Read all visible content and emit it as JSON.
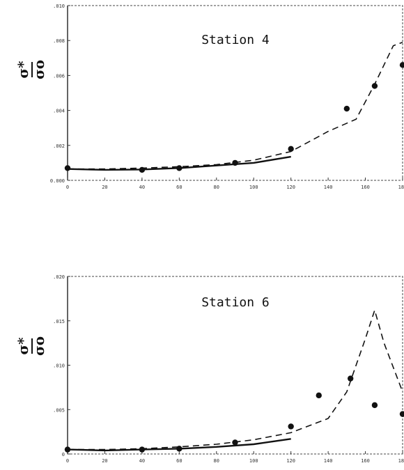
{
  "chart_data": [
    {
      "type": "line",
      "title": "Station 4",
      "ylabel_top": "σ*",
      "ylabel_bottom": "σo",
      "xlim": [
        0,
        180
      ],
      "ylim": [
        0,
        0.01
      ],
      "x_ticks": [
        "0",
        "20",
        "40",
        "60",
        "80",
        "100",
        "120",
        "140",
        "160",
        "180"
      ],
      "y_ticks": [
        "0.000",
        ".002",
        ".004",
        ".006",
        ".008",
        ".010"
      ],
      "grid": false,
      "series": [
        {
          "style": "dashed",
          "x": [
            0,
            20,
            40,
            60,
            80,
            100,
            120,
            140,
            155,
            165,
            175,
            180
          ],
          "y": [
            0.00065,
            0.00065,
            0.0007,
            0.00078,
            0.0009,
            0.00115,
            0.00165,
            0.0028,
            0.0035,
            0.0055,
            0.0077,
            0.0079
          ]
        },
        {
          "style": "solid",
          "x": [
            0,
            20,
            40,
            60,
            80,
            100,
            120
          ],
          "y": [
            0.00065,
            0.0006,
            0.00062,
            0.0007,
            0.00085,
            0.001,
            0.00135
          ]
        },
        {
          "style": "points",
          "x": [
            0,
            40,
            60,
            90,
            120,
            150,
            165,
            180
          ],
          "y": [
            0.0007,
            0.0006,
            0.0007,
            0.001,
            0.0018,
            0.0041,
            0.0054,
            0.0066
          ]
        }
      ]
    },
    {
      "type": "line",
      "title": "Station 6",
      "ylabel_top": "σ*",
      "ylabel_bottom": "σo",
      "xlim": [
        0,
        180
      ],
      "ylim": [
        0,
        0.02
      ],
      "x_ticks": [
        "0",
        "20",
        "40",
        "60",
        "80",
        "100",
        "120",
        "140",
        "160",
        "180"
      ],
      "y_ticks": [
        "0",
        ".005",
        ".010",
        ".015",
        ".020"
      ],
      "grid": false,
      "series": [
        {
          "style": "dashed",
          "x": [
            0,
            20,
            40,
            60,
            80,
            100,
            120,
            140,
            150,
            160,
            165,
            170,
            180
          ],
          "y": [
            0.0005,
            0.0005,
            0.0006,
            0.0008,
            0.0011,
            0.0016,
            0.0024,
            0.004,
            0.007,
            0.013,
            0.0162,
            0.0125,
            0.007
          ]
        },
        {
          "style": "solid",
          "x": [
            0,
            20,
            40,
            60,
            80,
            100,
            120
          ],
          "y": [
            0.0005,
            0.0004,
            0.0005,
            0.0006,
            0.0008,
            0.0011,
            0.0017
          ]
        },
        {
          "style": "points",
          "x": [
            0,
            40,
            60,
            90,
            120,
            135,
            152,
            165,
            180
          ],
          "y": [
            0.0005,
            0.0005,
            0.0006,
            0.0013,
            0.0031,
            0.0066,
            0.0085,
            0.0055,
            0.0045
          ]
        }
      ]
    }
  ]
}
